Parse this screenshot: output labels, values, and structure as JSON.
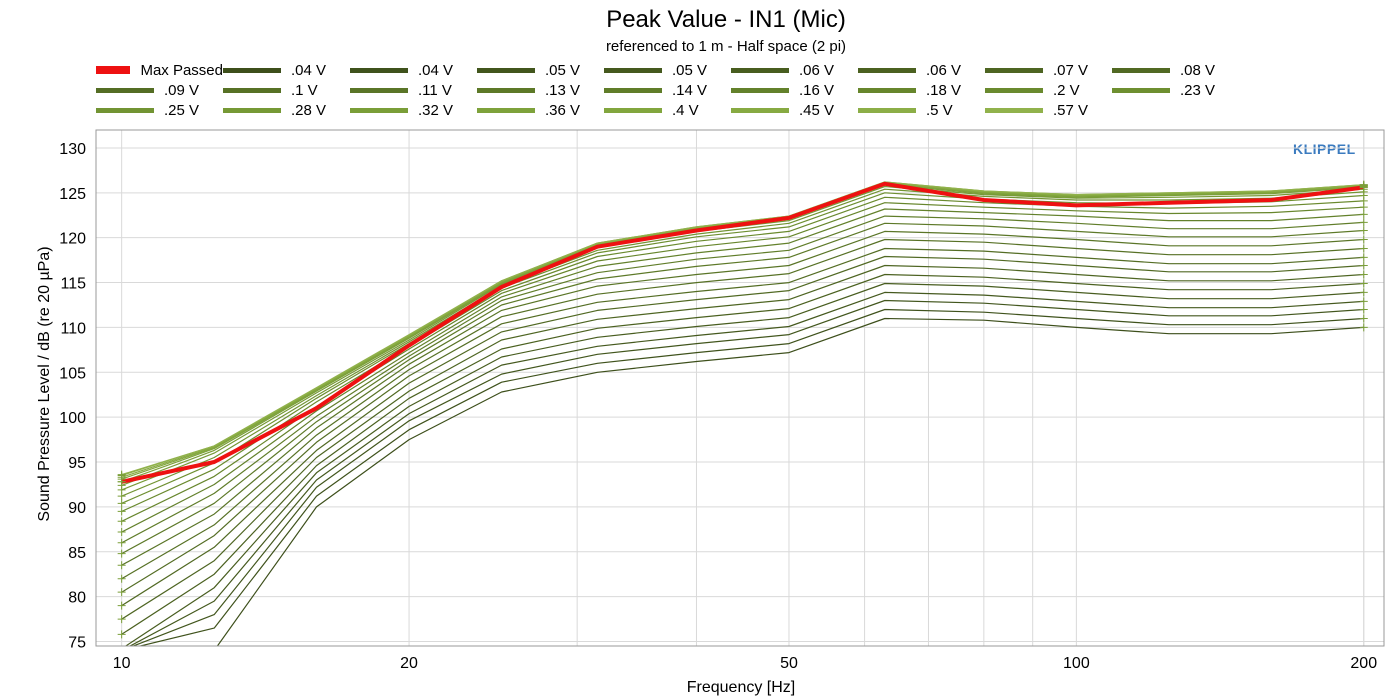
{
  "chart_data": {
    "type": "line",
    "title": "Peak Value - IN1 (Mic)",
    "subtitle": "referenced to 1 m - Half space (2 pi)",
    "xlabel": "Frequency [Hz]",
    "ylabel": "Sound Pressure Level / dB (re 20 µPa)",
    "x_scale": "log",
    "xlim": [
      9.4,
      210
    ],
    "ylim": [
      74.5,
      132
    ],
    "x_ticks": [
      10,
      20,
      50,
      100,
      200
    ],
    "x_tick_labels": [
      "10",
      "20",
      "50",
      "100",
      "200"
    ],
    "y_ticks": [
      75,
      80,
      85,
      90,
      95,
      100,
      105,
      110,
      115,
      120,
      125,
      130
    ],
    "y_tick_labels": [
      "75",
      "80",
      "85",
      "90",
      "95",
      "100",
      "105",
      "110",
      "115",
      "120",
      "125",
      "130"
    ],
    "grid": true,
    "legend_position": "top",
    "logo": "KLIPPEL",
    "x": [
      10,
      12.5,
      16,
      20,
      25,
      31.5,
      40,
      50,
      63,
      80,
      100,
      125,
      160,
      200
    ],
    "series": [
      {
        "name": "Max Passed",
        "color": "#ee1111",
        "values": [
          92.8,
          95.0,
          101.0,
          108.0,
          114.5,
          119.0,
          120.8,
          122.2,
          126.0,
          124.2,
          123.6,
          123.9,
          124.2,
          125.6
        ]
      },
      {
        "name": ".04 V",
        "color": "#3d4f1b",
        "values": [
          74.0,
          74.0,
          90.0,
          97.5,
          102.8,
          105.0,
          106.2,
          107.2,
          111.0,
          110.8,
          110.0,
          109.3,
          109.3,
          110.0
        ]
      },
      {
        "name": ".04 V",
        "color": "#3f521c",
        "values": [
          74.0,
          76.5,
          91.2,
          98.6,
          103.9,
          106.0,
          107.2,
          108.2,
          112.0,
          111.7,
          111.0,
          110.3,
          110.3,
          111.0
        ]
      },
      {
        "name": ".05 V",
        "color": "#42561d",
        "values": [
          74.0,
          78.0,
          92.2,
          99.6,
          104.8,
          107.0,
          108.2,
          109.2,
          113.0,
          112.7,
          112.0,
          111.3,
          111.3,
          112.0
        ]
      },
      {
        "name": ".05 V",
        "color": "#45591e",
        "values": [
          74.0,
          79.5,
          93.0,
          100.4,
          105.8,
          107.9,
          109.1,
          110.1,
          113.9,
          113.6,
          112.9,
          112.2,
          112.2,
          112.9
        ]
      },
      {
        "name": ".06 V",
        "color": "#485d1f",
        "values": [
          74.2,
          81.0,
          93.8,
          101.2,
          106.7,
          108.9,
          110.1,
          111.1,
          114.9,
          114.6,
          113.9,
          113.2,
          113.2,
          113.9
        ]
      },
      {
        "name": ".06 V",
        "color": "#4b6120",
        "values": [
          75.8,
          82.5,
          94.6,
          102.1,
          107.6,
          109.9,
          111.1,
          112.1,
          115.9,
          115.6,
          114.9,
          114.2,
          114.2,
          114.9
        ]
      },
      {
        "name": ".07 V",
        "color": "#4e6522",
        "values": [
          77.5,
          84.0,
          95.5,
          102.9,
          108.6,
          110.9,
          112.1,
          113.1,
          116.9,
          116.6,
          115.9,
          115.2,
          115.2,
          115.9
        ]
      },
      {
        "name": ".08 V",
        "color": "#516923",
        "values": [
          79.0,
          85.5,
          96.3,
          103.8,
          109.5,
          111.9,
          113.1,
          114.1,
          117.9,
          117.6,
          116.9,
          116.2,
          116.2,
          116.9
        ]
      },
      {
        "name": ".09 V",
        "color": "#546d24",
        "values": [
          80.5,
          86.8,
          97.2,
          104.6,
          110.4,
          112.8,
          114.0,
          115.0,
          118.8,
          118.5,
          117.8,
          117.1,
          117.1,
          117.8
        ]
      },
      {
        "name": ".1 V",
        "color": "#577125",
        "values": [
          82.0,
          88.0,
          98.0,
          105.3,
          111.2,
          113.7,
          115.0,
          116.0,
          119.8,
          119.5,
          118.8,
          118.1,
          118.1,
          118.8
        ]
      },
      {
        "name": ".11 V",
        "color": "#5a7527",
        "values": [
          83.5,
          89.2,
          98.8,
          105.9,
          111.9,
          114.6,
          115.9,
          116.9,
          120.7,
          120.4,
          119.8,
          119.1,
          119.1,
          119.8
        ]
      },
      {
        "name": ".13 V",
        "color": "#5d7928",
        "values": [
          84.8,
          90.4,
          99.5,
          106.4,
          112.5,
          115.4,
          116.8,
          117.8,
          121.6,
          121.3,
          120.7,
          120.1,
          120.1,
          120.8
        ]
      },
      {
        "name": ".14 V",
        "color": "#607d29",
        "values": [
          86.0,
          91.5,
          100.1,
          106.8,
          113.0,
          116.1,
          117.6,
          118.6,
          122.4,
          122.1,
          121.6,
          121.0,
          121.0,
          121.7
        ]
      },
      {
        "name": ".16 V",
        "color": "#63812b",
        "values": [
          87.2,
          92.5,
          100.7,
          107.2,
          113.4,
          116.8,
          118.3,
          119.4,
          123.2,
          122.8,
          122.4,
          121.9,
          121.9,
          122.6
        ]
      },
      {
        "name": ".18 V",
        "color": "#67862c",
        "values": [
          88.4,
          93.4,
          101.2,
          107.6,
          113.8,
          117.4,
          119.0,
          120.1,
          123.9,
          123.4,
          123.0,
          122.7,
          122.8,
          123.4
        ]
      },
      {
        "name": ".2 V",
        "color": "#6a8a2e",
        "values": [
          89.5,
          94.2,
          101.7,
          107.9,
          114.1,
          117.9,
          119.6,
          120.7,
          124.5,
          123.9,
          123.5,
          123.3,
          123.5,
          124.1
        ]
      },
      {
        "name": ".23 V",
        "color": "#6e8f30",
        "values": [
          90.4,
          94.9,
          102.1,
          108.2,
          114.4,
          118.3,
          120.1,
          121.2,
          125.0,
          124.3,
          123.9,
          123.8,
          124.0,
          124.7
        ]
      },
      {
        "name": ".25 V",
        "color": "#729433",
        "values": [
          91.2,
          95.5,
          102.4,
          108.4,
          114.6,
          118.6,
          120.4,
          121.6,
          125.4,
          124.6,
          124.2,
          124.2,
          124.4,
          125.1
        ]
      },
      {
        "name": ".28 V",
        "color": "#769935",
        "values": [
          91.9,
          96.0,
          102.7,
          108.6,
          114.8,
          118.9,
          120.7,
          121.9,
          125.7,
          124.8,
          124.4,
          124.5,
          124.7,
          125.4
        ]
      },
      {
        "name": ".32 V",
        "color": "#7a9e38",
        "values": [
          92.4,
          96.3,
          102.9,
          108.8,
          114.9,
          119.1,
          120.9,
          122.1,
          125.9,
          124.9,
          124.5,
          124.7,
          124.9,
          125.6
        ]
      },
      {
        "name": ".36 V",
        "color": "#7ea23b",
        "values": [
          92.8,
          96.5,
          103.0,
          108.9,
          115.0,
          119.2,
          121.0,
          122.2,
          126.0,
          125.0,
          124.6,
          124.8,
          125.0,
          125.7
        ]
      },
      {
        "name": ".4 V",
        "color": "#82a63e",
        "values": [
          93.1,
          96.6,
          103.1,
          109.0,
          115.1,
          119.3,
          121.1,
          122.3,
          126.1,
          125.1,
          124.7,
          124.9,
          125.1,
          125.8
        ]
      },
      {
        "name": ".45 V",
        "color": "#87aa42",
        "values": [
          93.3,
          96.7,
          103.2,
          109.1,
          115.1,
          119.3,
          121.1,
          122.3,
          126.1,
          125.1,
          124.7,
          124.9,
          125.1,
          125.8
        ]
      },
      {
        "name": ".5 V",
        "color": "#8cae47",
        "values": [
          93.5,
          96.8,
          103.2,
          109.1,
          115.2,
          119.4,
          121.2,
          122.4,
          126.2,
          125.2,
          124.8,
          125.0,
          125.2,
          125.9
        ]
      },
      {
        "name": ".57 V",
        "color": "#91b24c",
        "values": [
          93.6,
          96.8,
          103.3,
          109.2,
          115.2,
          119.4,
          121.2,
          122.4,
          126.2,
          125.2,
          124.8,
          125.0,
          125.2,
          125.9
        ]
      }
    ]
  }
}
